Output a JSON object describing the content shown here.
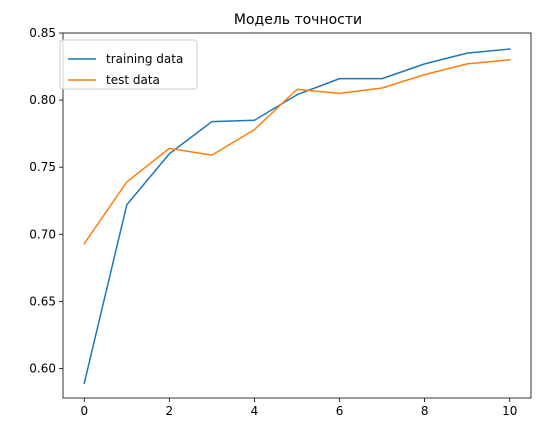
{
  "chart_data": {
    "type": "line",
    "title": "Модель точности",
    "xlabel": "",
    "ylabel": "",
    "xlim": [
      -0.5,
      10.5
    ],
    "ylim": [
      0.578,
      0.85
    ],
    "x_ticks": [
      0,
      2,
      4,
      6,
      8,
      10
    ],
    "x_tick_labels": [
      "0",
      "2",
      "4",
      "6",
      "8",
      "10"
    ],
    "y_ticks": [
      0.6,
      0.65,
      0.7,
      0.75,
      0.8,
      0.85
    ],
    "y_tick_labels": [
      "0.60",
      "0.65",
      "0.70",
      "0.75",
      "0.80",
      "0.85"
    ],
    "grid": false,
    "legend_position": "top-left",
    "x": [
      0,
      1,
      2,
      3,
      4,
      5,
      6,
      7,
      8,
      9,
      10
    ],
    "series": [
      {
        "name": "training data",
        "color": "#1f77b4",
        "values": [
          0.589,
          0.722,
          0.76,
          0.784,
          0.785,
          0.804,
          0.816,
          0.816,
          0.827,
          0.835,
          0.838
        ]
      },
      {
        "name": "test data",
        "color": "#ff7f0e",
        "values": [
          0.693,
          0.739,
          0.764,
          0.759,
          0.778,
          0.808,
          0.805,
          0.809,
          0.819,
          0.827,
          0.83
        ]
      }
    ]
  }
}
